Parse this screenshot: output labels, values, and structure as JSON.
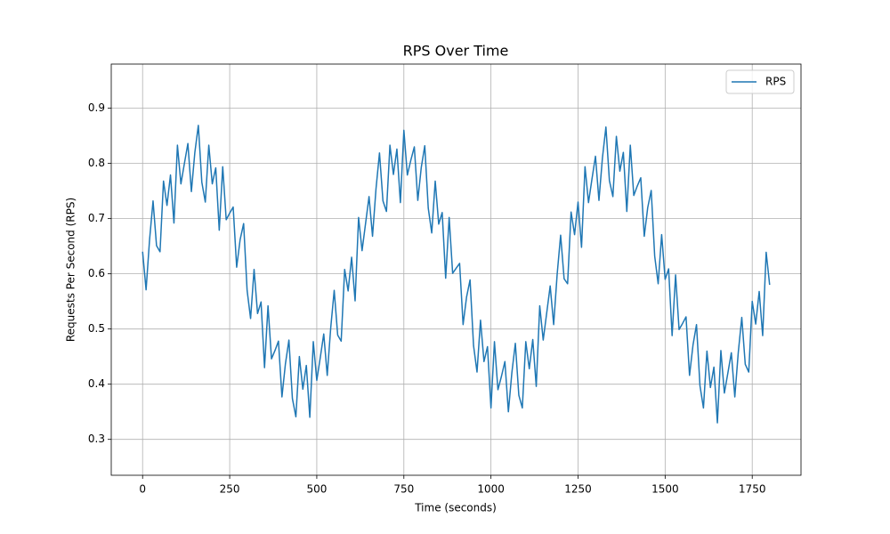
{
  "chart_data": {
    "type": "line",
    "title": "RPS Over Time",
    "x_label": "Time (seconds)",
    "y_label": "Requests Per Second (RPS)",
    "x": [
      0,
      10,
      20,
      30,
      40,
      50,
      60,
      70,
      80,
      90,
      100,
      110,
      120,
      130,
      140,
      150,
      160,
      170,
      180,
      190,
      200,
      210,
      220,
      230,
      240,
      250,
      260,
      270,
      280,
      290,
      300,
      310,
      320,
      330,
      340,
      350,
      360,
      370,
      380,
      390,
      400,
      410,
      420,
      430,
      440,
      450,
      460,
      470,
      480,
      490,
      500,
      510,
      520,
      530,
      540,
      550,
      560,
      570,
      580,
      590,
      600,
      610,
      620,
      630,
      640,
      650,
      660,
      670,
      680,
      690,
      700,
      710,
      720,
      730,
      740,
      750,
      760,
      770,
      780,
      790,
      800,
      810,
      820,
      830,
      840,
      850,
      860,
      870,
      880,
      890,
      900,
      910,
      920,
      930,
      940,
      950,
      960,
      970,
      980,
      990,
      1000,
      1010,
      1020,
      1030,
      1040,
      1050,
      1060,
      1070,
      1080,
      1090,
      1100,
      1110,
      1120,
      1130,
      1140,
      1150,
      1160,
      1170,
      1180,
      1190,
      1200,
      1210,
      1220,
      1230,
      1240,
      1250,
      1260,
      1270,
      1280,
      1290,
      1300,
      1310,
      1320,
      1330,
      1340,
      1350,
      1360,
      1370,
      1380,
      1390,
      1400,
      1410,
      1420,
      1430,
      1440,
      1450,
      1460,
      1470,
      1480,
      1490,
      1500,
      1510,
      1520,
      1530,
      1540,
      1550,
      1560,
      1570,
      1580,
      1590,
      1600,
      1610,
      1620,
      1630,
      1640,
      1650,
      1660,
      1670,
      1680,
      1690,
      1700,
      1710,
      1720,
      1730,
      1740,
      1750,
      1760,
      1770,
      1780,
      1790,
      1800
    ],
    "series": [
      {
        "name": "RPS",
        "color": "#1f77b4",
        "values": [
          0.64,
          0.571,
          0.662,
          0.732,
          0.651,
          0.64,
          0.768,
          0.724,
          0.779,
          0.692,
          0.833,
          0.763,
          0.8,
          0.836,
          0.749,
          0.82,
          0.869,
          0.766,
          0.73,
          0.833,
          0.763,
          0.792,
          0.679,
          0.794,
          0.698,
          0.71,
          0.721,
          0.612,
          0.662,
          0.691,
          0.57,
          0.519,
          0.608,
          0.528,
          0.549,
          0.43,
          0.542,
          0.446,
          0.461,
          0.478,
          0.377,
          0.437,
          0.48,
          0.374,
          0.341,
          0.45,
          0.391,
          0.434,
          0.34,
          0.477,
          0.407,
          0.448,
          0.491,
          0.416,
          0.502,
          0.57,
          0.489,
          0.478,
          0.608,
          0.569,
          0.63,
          0.551,
          0.702,
          0.642,
          0.691,
          0.74,
          0.668,
          0.754,
          0.819,
          0.732,
          0.713,
          0.833,
          0.78,
          0.826,
          0.729,
          0.86,
          0.779,
          0.806,
          0.83,
          0.733,
          0.793,
          0.832,
          0.719,
          0.674,
          0.768,
          0.69,
          0.711,
          0.592,
          0.702,
          0.601,
          0.61,
          0.619,
          0.508,
          0.558,
          0.589,
          0.47,
          0.422,
          0.516,
          0.441,
          0.468,
          0.357,
          0.477,
          0.39,
          0.414,
          0.441,
          0.35,
          0.421,
          0.474,
          0.38,
          0.357,
          0.477,
          0.428,
          0.481,
          0.396,
          0.542,
          0.48,
          0.529,
          0.578,
          0.508,
          0.599,
          0.67,
          0.591,
          0.582,
          0.712,
          0.671,
          0.73,
          0.648,
          0.794,
          0.729,
          0.772,
          0.813,
          0.733,
          0.81,
          0.866,
          0.769,
          0.74,
          0.849,
          0.786,
          0.82,
          0.713,
          0.833,
          0.742,
          0.759,
          0.774,
          0.668,
          0.72,
          0.751,
          0.632,
          0.582,
          0.671,
          0.59,
          0.609,
          0.488,
          0.598,
          0.499,
          0.51,
          0.522,
          0.416,
          0.471,
          0.508,
          0.397,
          0.357,
          0.46,
          0.394,
          0.431,
          0.33,
          0.461,
          0.384,
          0.42,
          0.457,
          0.377,
          0.458,
          0.521,
          0.436,
          0.422,
          0.55,
          0.509,
          0.568,
          0.488,
          0.639,
          0.58
        ]
      }
    ],
    "xlim": [
      -90,
      1890
    ],
    "xticks": [
      0,
      250,
      500,
      750,
      1000,
      1250,
      1500,
      1750
    ],
    "ylim": [
      0.235,
      0.98
    ],
    "yticks": [
      0.3,
      0.4,
      0.5,
      0.6,
      0.7,
      0.8,
      0.9
    ],
    "grid": true,
    "legend": "upper right"
  }
}
